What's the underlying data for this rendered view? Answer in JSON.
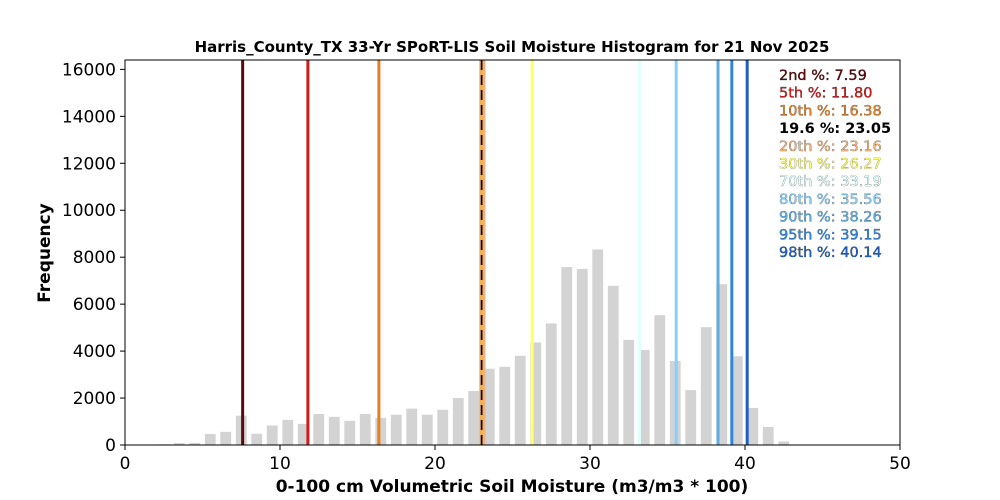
{
  "chart_data": {
    "type": "bar",
    "title": "Harris_County_TX 33-Yr SPoRT-LIS Soil Moisture Histogram for 21 Nov 2025",
    "xlabel": "0-100 cm Volumetric Soil Moisture (m3/m3 * 100)",
    "ylabel": "Frequency",
    "xlim": [
      0,
      50
    ],
    "ylim": [
      0,
      16400
    ],
    "xticks": [
      0,
      10,
      20,
      30,
      40,
      50
    ],
    "yticks": [
      0,
      2000,
      4000,
      6000,
      8000,
      10000,
      12000,
      14000,
      16000
    ],
    "bar_color": "#d3d3d3",
    "bin_width": 1,
    "bins": [
      {
        "x": 2.5,
        "y": 30
      },
      {
        "x": 3.5,
        "y": 80
      },
      {
        "x": 4.5,
        "y": 90
      },
      {
        "x": 5.5,
        "y": 470
      },
      {
        "x": 6.5,
        "y": 560
      },
      {
        "x": 7.5,
        "y": 1250
      },
      {
        "x": 8.5,
        "y": 480
      },
      {
        "x": 9.5,
        "y": 830
      },
      {
        "x": 10.5,
        "y": 1070
      },
      {
        "x": 11.5,
        "y": 900
      },
      {
        "x": 12.5,
        "y": 1320
      },
      {
        "x": 13.5,
        "y": 1200
      },
      {
        "x": 14.5,
        "y": 1030
      },
      {
        "x": 15.5,
        "y": 1320
      },
      {
        "x": 16.5,
        "y": 1150
      },
      {
        "x": 17.5,
        "y": 1290
      },
      {
        "x": 18.5,
        "y": 1550
      },
      {
        "x": 19.5,
        "y": 1290
      },
      {
        "x": 20.5,
        "y": 1500
      },
      {
        "x": 21.5,
        "y": 2000
      },
      {
        "x": 22.5,
        "y": 2300
      },
      {
        "x": 23.5,
        "y": 3250
      },
      {
        "x": 24.5,
        "y": 3330
      },
      {
        "x": 25.5,
        "y": 3800
      },
      {
        "x": 26.5,
        "y": 4370
      },
      {
        "x": 27.5,
        "y": 5180
      },
      {
        "x": 28.5,
        "y": 7580
      },
      {
        "x": 29.5,
        "y": 7500
      },
      {
        "x": 30.5,
        "y": 8330
      },
      {
        "x": 31.5,
        "y": 6780
      },
      {
        "x": 32.5,
        "y": 4480
      },
      {
        "x": 33.5,
        "y": 4050
      },
      {
        "x": 34.5,
        "y": 5530
      },
      {
        "x": 35.5,
        "y": 3580
      },
      {
        "x": 36.5,
        "y": 2340
      },
      {
        "x": 37.5,
        "y": 5020
      },
      {
        "x": 38.5,
        "y": 6850
      },
      {
        "x": 39.5,
        "y": 3780
      },
      {
        "x": 40.5,
        "y": 1580
      },
      {
        "x": 41.5,
        "y": 770
      },
      {
        "x": 42.5,
        "y": 150
      }
    ],
    "percentile_lines": [
      {
        "label": "2nd %",
        "value": 7.59,
        "value_text": "7.59",
        "color": "#5c0a0a",
        "dashed": false
      },
      {
        "label": "5th %",
        "value": 11.8,
        "value_text": "11.80",
        "color": "#d11a1a",
        "dashed": false
      },
      {
        "label": "10th %",
        "value": 16.38,
        "value_text": "16.38",
        "color": "#e67e22",
        "dashed": false
      },
      {
        "label": "19.6 %",
        "value": 23.05,
        "value_text": "23.05",
        "color": "#000000",
        "dashed": true
      },
      {
        "label": "20th %",
        "value": 23.16,
        "value_text": "23.16",
        "color": "#f0b27a",
        "dashed": false
      },
      {
        "label": "30th %",
        "value": 26.27,
        "value_text": "26.27",
        "color": "#ffff66",
        "dashed": false
      },
      {
        "label": "70th %",
        "value": 33.19,
        "value_text": "33.19",
        "color": "#e0ffff",
        "dashed": false
      },
      {
        "label": "80th %",
        "value": 35.56,
        "value_text": "35.56",
        "color": "#87cefa",
        "dashed": false
      },
      {
        "label": "90th %",
        "value": 38.26,
        "value_text": "38.26",
        "color": "#5dade2",
        "dashed": false
      },
      {
        "label": "95th %",
        "value": 39.15,
        "value_text": "39.15",
        "color": "#2e86de",
        "dashed": false
      },
      {
        "label": "98th %",
        "value": 40.14,
        "value_text": "40.14",
        "color": "#1f5fbf",
        "dashed": false
      }
    ],
    "legend_placement": "top-right",
    "grid": false
  }
}
